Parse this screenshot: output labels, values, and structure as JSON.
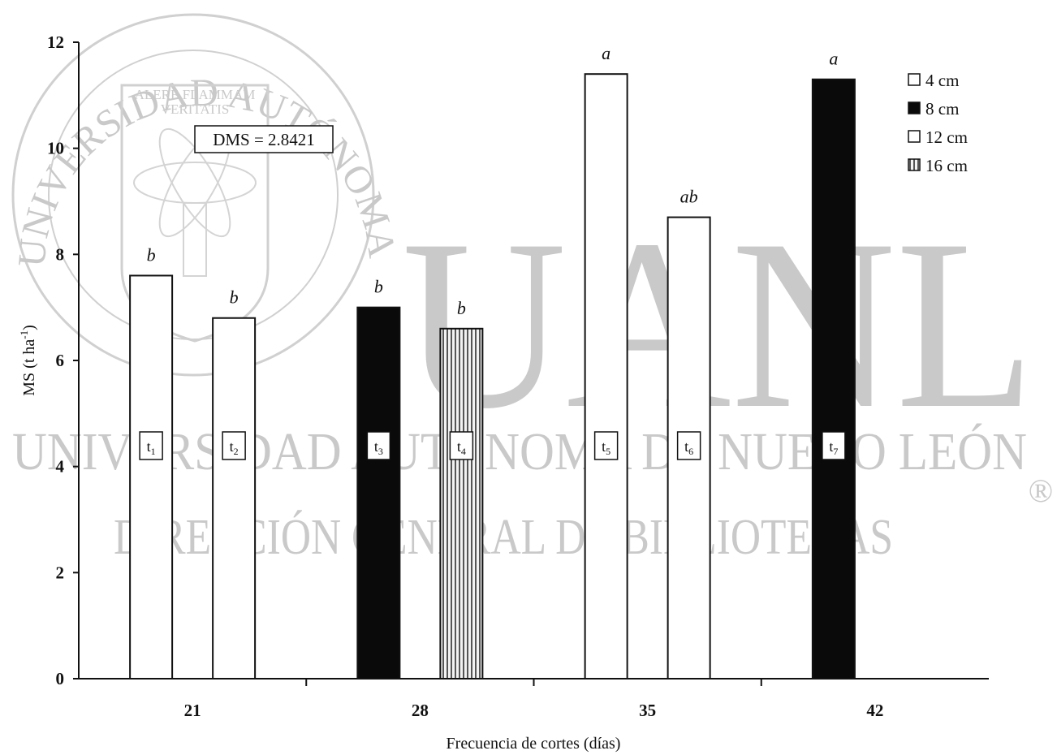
{
  "chart_data": {
    "type": "bar",
    "xlabel": "Frecuencia de cortes (días)",
    "ylabel": "MS (t ha-1)",
    "ylabel_main": "MS (t ha",
    "ylabel_sup": "-1",
    "ylabel_tail": ")",
    "ylim": [
      0,
      12
    ],
    "yticks": [
      "0",
      "2",
      "4",
      "6",
      "8",
      "10",
      "12"
    ],
    "categories": [
      "21",
      "28",
      "35",
      "42"
    ],
    "annotation": "DMS = 2.8421",
    "grid": false,
    "legend_position": "top-right",
    "legend": [
      {
        "label": "4 cm",
        "pattern": "white"
      },
      {
        "label": "8 cm",
        "pattern": "black"
      },
      {
        "label": "12 cm",
        "pattern": "white"
      },
      {
        "label": "16 cm",
        "pattern": "striped"
      }
    ],
    "bars": [
      {
        "category": "21",
        "value": 7.6,
        "letter": "b",
        "treatment": "t",
        "sub": "1",
        "pattern": "white"
      },
      {
        "category": "21",
        "value": 6.8,
        "letter": "b",
        "treatment": "t",
        "sub": "2",
        "pattern": "white"
      },
      {
        "category": "28",
        "value": 7.0,
        "letter": "b",
        "treatment": "t",
        "sub": "3",
        "pattern": "black"
      },
      {
        "category": "28",
        "value": 6.6,
        "letter": "b",
        "treatment": "t",
        "sub": "4",
        "pattern": "striped"
      },
      {
        "category": "35",
        "value": 11.4,
        "letter": "a",
        "treatment": "t",
        "sub": "5",
        "pattern": "white"
      },
      {
        "category": "35",
        "value": 8.7,
        "letter": "ab",
        "treatment": "t",
        "sub": "6",
        "pattern": "white"
      },
      {
        "category": "42",
        "value": 11.3,
        "letter": "a",
        "treatment": "t",
        "sub": "7",
        "pattern": "black"
      }
    ]
  },
  "watermark": {
    "arc_text": "UNIVERSIDAD AUTÓNOMA DE NUEVO LEÓN",
    "motto_1": "ALERE FLAMMAM",
    "motto_2": "VERITATIS",
    "big": "UANL",
    "line1": "UNIVERSIDAD AUTÓNOMA DE NUEVO LEÓN",
    "line2": "DIRECCIÓN GENERAL DE BIBLIOTECAS",
    "mark": "®"
  }
}
